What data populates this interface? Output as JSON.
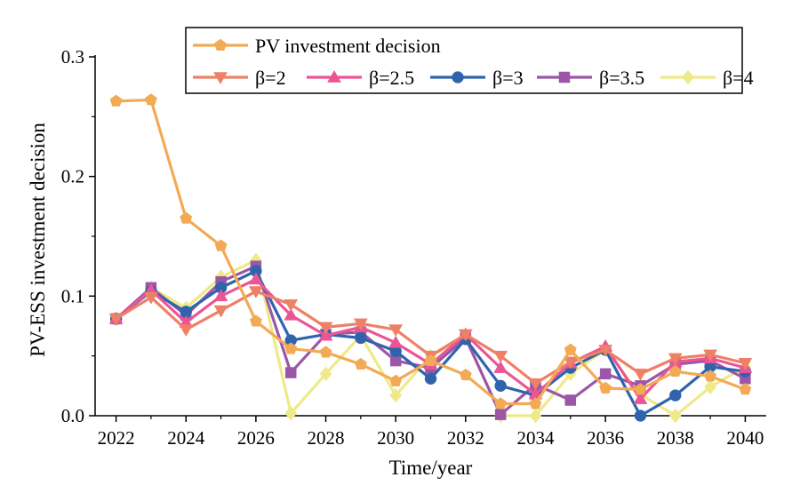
{
  "chart_data": {
    "type": "line",
    "title": "",
    "xlabel": "Time/year",
    "ylabel": "PV-ESS investment decision",
    "xlim": [
      2021.4,
      2040.6
    ],
    "ylim": [
      0,
      0.3
    ],
    "xticks": [
      2022,
      2024,
      2026,
      2028,
      2030,
      2032,
      2034,
      2036,
      2038,
      2040
    ],
    "xtick_labels": [
      "2022",
      "2024",
      "2026",
      "2028",
      "2030",
      "2032",
      "2034",
      "2036",
      "2038",
      "2040"
    ],
    "yticks": [
      0,
      0.1,
      0.2,
      0.3
    ],
    "ytick_labels": [
      "0.0",
      "0.1",
      "0.2",
      "0.3"
    ],
    "legend_position": "top-right",
    "x": [
      2022,
      2023,
      2024,
      2025,
      2026,
      2027,
      2028,
      2029,
      2030,
      2031,
      2032,
      2033,
      2034,
      2035,
      2036,
      2037,
      2038,
      2039,
      2040
    ],
    "series": [
      {
        "name": "PV investment decision",
        "color": "#F2AA55",
        "marker": "pentagon",
        "values": [
          0.263,
          0.264,
          0.165,
          0.142,
          0.079,
          0.056,
          0.053,
          0.043,
          0.029,
          0.046,
          0.034,
          0.01,
          0.01,
          0.055,
          0.023,
          0.022,
          0.037,
          0.033,
          0.022
        ]
      },
      {
        "name": "β=2",
        "color": "#EE8066",
        "marker": "triangle-down",
        "values": [
          0.081,
          0.099,
          0.072,
          0.088,
          0.104,
          0.093,
          0.074,
          0.077,
          0.072,
          0.05,
          0.068,
          0.05,
          0.027,
          0.045,
          0.055,
          0.035,
          0.048,
          0.051,
          0.044
        ]
      },
      {
        "name": "β=2.5",
        "color": "#EC5595",
        "marker": "triangle-up",
        "values": [
          0.081,
          0.105,
          0.078,
          0.1,
          0.114,
          0.084,
          0.067,
          0.074,
          0.061,
          0.043,
          0.068,
          0.04,
          0.018,
          0.044,
          0.058,
          0.014,
          0.045,
          0.048,
          0.04
        ]
      },
      {
        "name": "β=3",
        "color": "#2F64AD",
        "marker": "circle",
        "values": [
          0.081,
          0.104,
          0.087,
          0.107,
          0.121,
          0.063,
          0.068,
          0.065,
          0.054,
          0.031,
          0.064,
          0.025,
          0.017,
          0.04,
          0.055,
          0.0,
          0.017,
          0.041,
          0.037
        ]
      },
      {
        "name": "β=3.5",
        "color": "#9B56A8",
        "marker": "square",
        "values": [
          0.081,
          0.107,
          0.084,
          0.112,
          0.125,
          0.036,
          0.068,
          0.07,
          0.046,
          0.04,
          0.065,
          0.001,
          0.026,
          0.013,
          0.035,
          0.025,
          0.043,
          0.046,
          0.031
        ]
      },
      {
        "name": "β=4",
        "color": "#EEEA88",
        "marker": "diamond",
        "values": [
          0.081,
          0.107,
          0.09,
          0.116,
          0.13,
          0.002,
          0.035,
          0.067,
          0.017,
          0.05,
          0.066,
          0.0,
          0.0,
          0.035,
          0.055,
          0.018,
          0.0,
          0.024,
          0.041
        ]
      }
    ]
  }
}
